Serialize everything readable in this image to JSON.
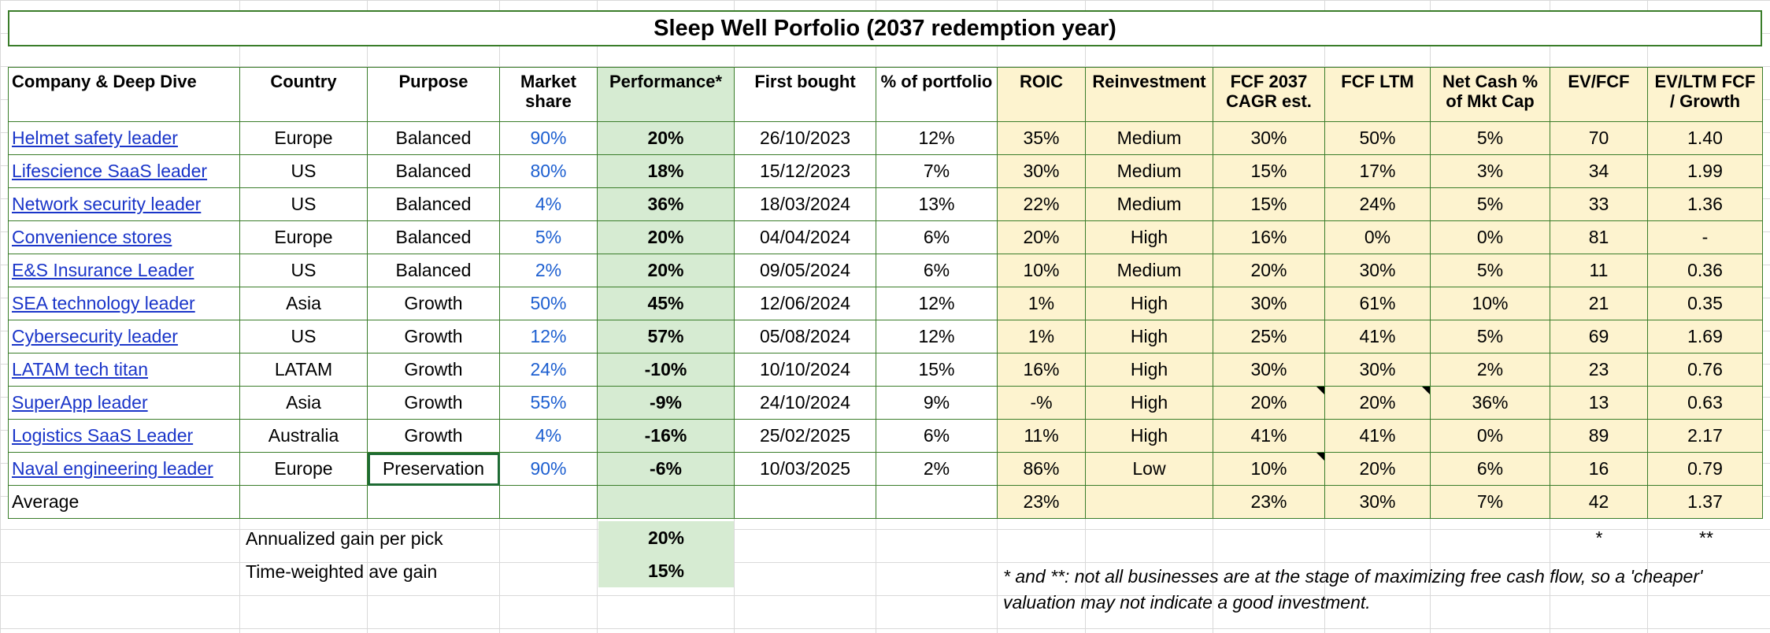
{
  "title": "Sleep Well Porfolio (2037 redemption year)",
  "headers": [
    "Company & Deep Dive",
    "Country",
    "Purpose",
    "Market share",
    "Performance*",
    "First bought",
    "% of portfolio",
    "ROIC",
    "Reinvestment",
    "FCF 2037 CAGR est.",
    "FCF LTM",
    "Net Cash % of Mkt Cap",
    "EV/FCF",
    "EV/LTM FCF / Growth"
  ],
  "rows": [
    {
      "company": "Helmet safety leader",
      "country": "Europe",
      "purpose": "Balanced",
      "share": "90%",
      "perf": "20%",
      "bought": "26/10/2023",
      "pct": "12%",
      "roic": "35%",
      "reinv": "Medium",
      "cagr": "30%",
      "ltm": "50%",
      "cash": "5%",
      "evfcf": "70",
      "growth": "1.40"
    },
    {
      "company": "Lifescience SaaS leader",
      "country": "US",
      "purpose": "Balanced",
      "share": "80%",
      "perf": "18%",
      "bought": "15/12/2023",
      "pct": "7%",
      "roic": "30%",
      "reinv": "Medium",
      "cagr": "15%",
      "ltm": "17%",
      "cash": "3%",
      "evfcf": "34",
      "growth": "1.99"
    },
    {
      "company": "Network security leader",
      "country": "US",
      "purpose": "Balanced",
      "share": "4%",
      "perf": "36%",
      "bought": "18/03/2024",
      "pct": "13%",
      "roic": "22%",
      "reinv": "Medium",
      "cagr": "15%",
      "ltm": "24%",
      "cash": "5%",
      "evfcf": "33",
      "growth": "1.36"
    },
    {
      "company": "Convenience stores",
      "country": "Europe",
      "purpose": "Balanced",
      "share": "5%",
      "perf": "20%",
      "bought": "04/04/2024",
      "pct": "6%",
      "roic": "20%",
      "reinv": "High",
      "cagr": "16%",
      "ltm": "0%",
      "cash": "0%",
      "evfcf": "81",
      "growth": "-"
    },
    {
      "company": "E&S Insurance Leader",
      "country": "US",
      "purpose": "Balanced",
      "share": "2%",
      "perf": "20%",
      "bought": "09/05/2024",
      "pct": "6%",
      "roic": "10%",
      "reinv": "Medium",
      "cagr": "20%",
      "ltm": "30%",
      "cash": "5%",
      "evfcf": "11",
      "growth": "0.36"
    },
    {
      "company": "SEA technology leader",
      "country": "Asia",
      "purpose": "Growth",
      "share": "50%",
      "perf": "45%",
      "bought": "12/06/2024",
      "pct": "12%",
      "roic": "1%",
      "reinv": "High",
      "cagr": "30%",
      "ltm": "61%",
      "cash": "10%",
      "evfcf": "21",
      "growth": "0.35"
    },
    {
      "company": "Cybersecurity leader",
      "country": "US",
      "purpose": "Growth",
      "share": "12%",
      "perf": "57%",
      "bought": "05/08/2024",
      "pct": "12%",
      "roic": "1%",
      "reinv": "High",
      "cagr": "25%",
      "ltm": "41%",
      "cash": "5%",
      "evfcf": "69",
      "growth": "1.69"
    },
    {
      "company": "LATAM tech titan",
      "country": "LATAM",
      "purpose": "Growth",
      "share": "24%",
      "perf": "-10%",
      "bought": "10/10/2024",
      "pct": "15%",
      "roic": "16%",
      "reinv": "High",
      "cagr": "30%",
      "ltm": "30%",
      "cash": "2%",
      "evfcf": "23",
      "growth": "0.76"
    },
    {
      "company": "SuperApp leader",
      "country": "Asia",
      "purpose": "Growth",
      "share": "55%",
      "perf": "-9%",
      "bought": "24/10/2024",
      "pct": "9%",
      "roic": "-%",
      "reinv": "High",
      "cagr": "20%",
      "ltm": "20%",
      "cash": "36%",
      "evfcf": "13",
      "growth": "0.63"
    },
    {
      "company": "Logistics SaaS Leader",
      "country": "Australia",
      "purpose": "Growth",
      "share": "4%",
      "perf": "-16%",
      "bought": "25/02/2025",
      "pct": "6%",
      "roic": "11%",
      "reinv": "High",
      "cagr": "41%",
      "ltm": "41%",
      "cash": "0%",
      "evfcf": "89",
      "growth": "2.17"
    },
    {
      "company": "Naval engineering leader",
      "country": "Europe",
      "purpose": "Preservation",
      "share": "90%",
      "perf": "-6%",
      "bought": "10/03/2025",
      "pct": "2%",
      "roic": "86%",
      "reinv": "Low",
      "cagr": "10%",
      "ltm": "20%",
      "cash": "6%",
      "evfcf": "16",
      "growth": "0.79"
    }
  ],
  "average": {
    "label": "Average",
    "roic": "23%",
    "cagr": "23%",
    "ltm": "30%",
    "cash": "7%",
    "evfcf": "42",
    "growth": "1.37"
  },
  "marks": {
    "star1": "*",
    "star2": "**"
  },
  "summary": [
    {
      "label": "Annualized gain per pick",
      "value": "20%"
    },
    {
      "label": "Time-weighted ave gain",
      "value": "15%"
    }
  ],
  "footnote": "* and **: not all businesses are at the stage of maximizing free cash flow, so a 'cheaper' valuation may not indicate a good investment.",
  "colors": {
    "border": "#3a7d2a",
    "performance_bg": "#d6ebd2",
    "metrics_bg": "#fdf3cf",
    "link": "#1a35c9",
    "share_text": "#1d5fd0"
  }
}
